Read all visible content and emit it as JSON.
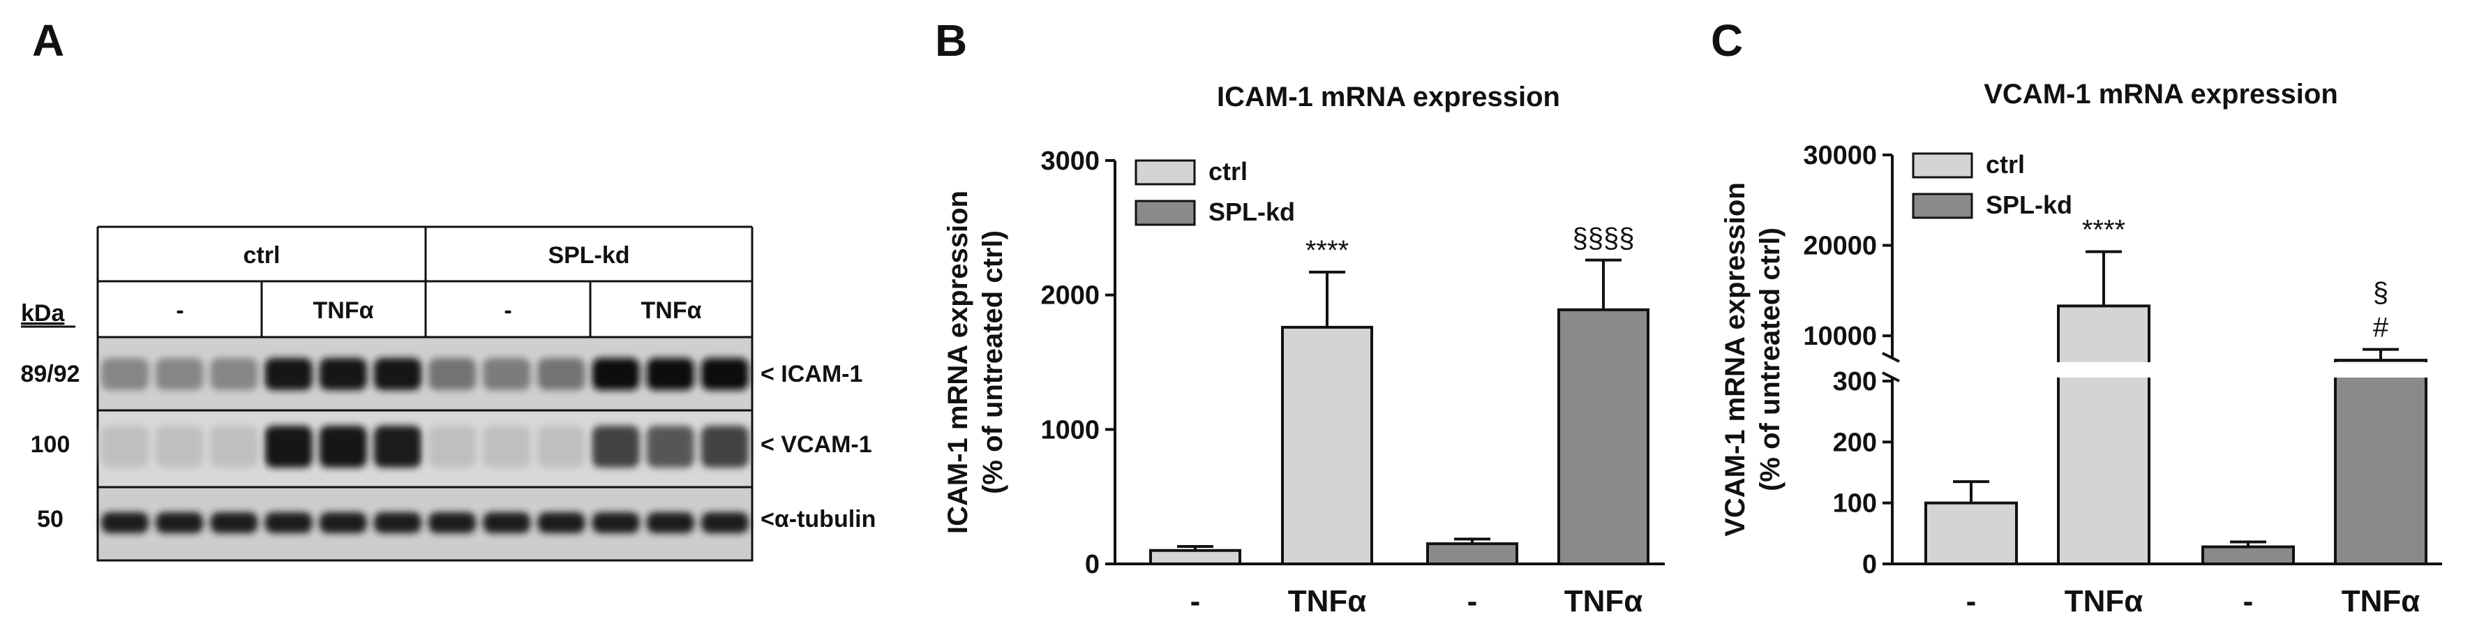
{
  "panels": {
    "a": {
      "letter": "A"
    },
    "b": {
      "letter": "B"
    },
    "c": {
      "letter": "C"
    }
  },
  "blot": {
    "kda_label": "kDa",
    "groups": [
      "ctrl",
      "SPL-kd"
    ],
    "treatments": [
      "-",
      "TNFα",
      "-",
      "TNFα"
    ],
    "rows": [
      {
        "kda": "89/92",
        "label": "< ICAM-1"
      },
      {
        "kda": "100",
        "label": "< VCAM-1"
      },
      {
        "kda": "50",
        "label": "<α-tubulin"
      }
    ]
  },
  "chart_data": [
    {
      "type": "bar",
      "title": "ICAM-1 mRNA expression",
      "ylabel_line1": "ICAM-1 mRNA expression",
      "ylabel_line2": "(% of untreated ctrl)",
      "categories": [
        "-",
        "TNFα",
        "-",
        "TNFα"
      ],
      "series_index": [
        0,
        0,
        1,
        1
      ],
      "values": [
        100,
        1760,
        150,
        1890
      ],
      "errors": [
        30,
        410,
        35,
        370
      ],
      "annotations": [
        "",
        "****",
        "",
        "§§§§"
      ],
      "ylim": [
        0,
        3000
      ],
      "yticks": [
        "0",
        "1000",
        "2000",
        "3000"
      ],
      "legend": [
        "ctrl",
        "SPL-kd"
      ],
      "legend_position": "top-left",
      "colors": [
        "#d4d4d4",
        "#8a8a8a"
      ]
    },
    {
      "type": "bar",
      "title": "VCAM-1 mRNA expression",
      "ylabel_line1": "VCAM-1 mRNA expression",
      "ylabel_line2": "(% of untreated ctrl)",
      "categories": [
        "-",
        "TNFα",
        "-",
        "TNFα"
      ],
      "series_index": [
        0,
        0,
        1,
        1
      ],
      "values": [
        100,
        13300,
        28,
        7300
      ],
      "errors": [
        35,
        6000,
        8,
        1200
      ],
      "annotations": [
        "",
        "****",
        "",
        "§\n#"
      ],
      "ylim_lower": [
        0,
        300
      ],
      "ylim_upper": [
        7000,
        30000
      ],
      "yticks_lower": [
        "0",
        "100",
        "200",
        "300"
      ],
      "yticks_upper": [
        "10000",
        "20000",
        "30000"
      ],
      "broken_axis": true,
      "legend": [
        "ctrl",
        "SPL-kd"
      ],
      "legend_position": "top-left",
      "colors": [
        "#d4d4d4",
        "#8a8a8a"
      ]
    }
  ]
}
